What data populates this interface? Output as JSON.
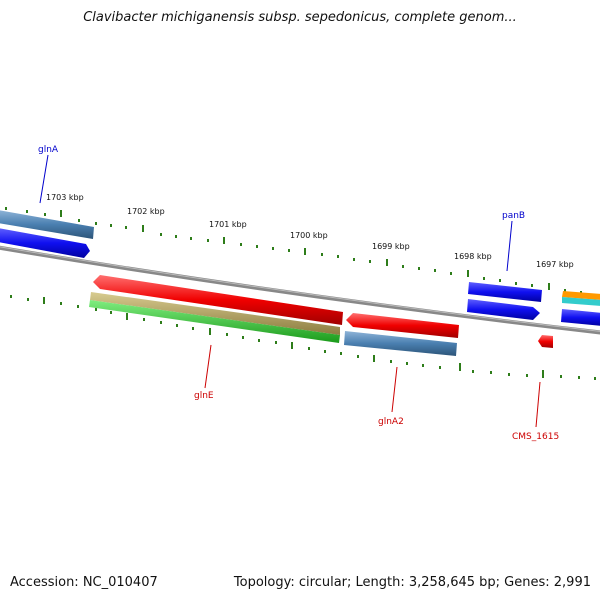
{
  "title": "Clavibacter michiganensis subsp. sepedonicus, complete genom...",
  "footer": {
    "accession": "Accession: NC_010407",
    "summary": "Topology: circular; Length: 3,258,645 bp; Genes: 2,991"
  },
  "scale_labels": [
    "1703 kbp",
    "1702 kbp",
    "1701 kbp",
    "1700 kbp",
    "1699 kbp",
    "1698 kbp",
    "1697 kbp"
  ],
  "gene_labels": [
    {
      "name": "glnA",
      "color": "#0000cc"
    },
    {
      "name": "panB",
      "color": "#0000cc"
    },
    {
      "name": "glnE",
      "color": "#cc0000"
    },
    {
      "name": "glnA2",
      "color": "#cc0000"
    },
    {
      "name": "CMS_1615",
      "color": "#cc0000"
    }
  ],
  "colors": {
    "backbone": "#888888",
    "tick": "#2e7d1a",
    "cds_blue": "#1a1ae6",
    "gene_steel": "#4a7fb0",
    "rna_red": "#e60000",
    "olive": "#b0a060",
    "green": "#33cc33",
    "orange": "#ff9900",
    "cyan": "#33cccc"
  }
}
